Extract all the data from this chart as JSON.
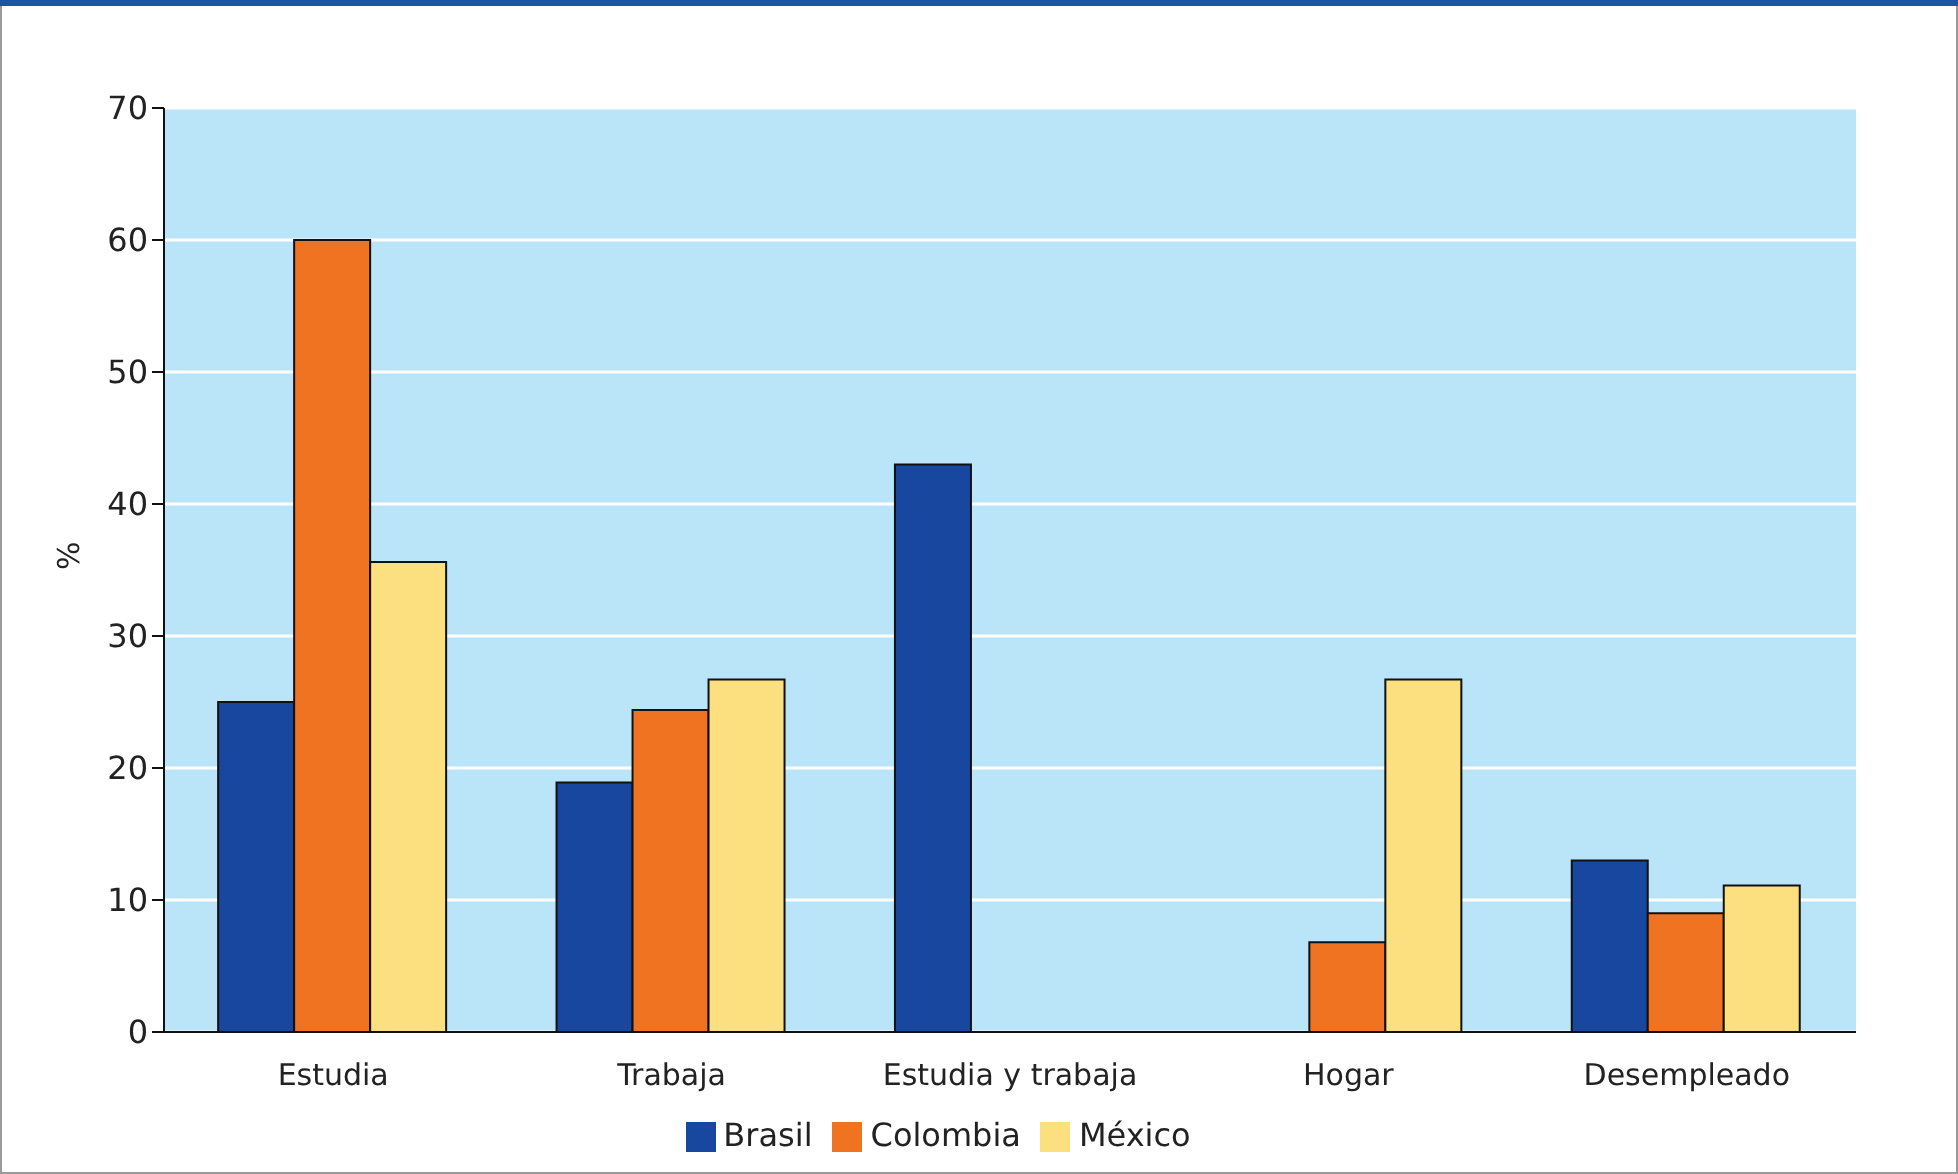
{
  "chart_data": {
    "type": "bar",
    "ylabel": "%",
    "categories": [
      "Estudia",
      "Trabaja",
      "Estudia y trabaja",
      "Hogar",
      "Desempleado"
    ],
    "series": [
      {
        "name": "Brasil",
        "color": "#17479e",
        "values": [
          25,
          18.9,
          43,
          null,
          13
        ]
      },
      {
        "name": "Colombia",
        "color": "#f07321",
        "values": [
          60,
          24.4,
          null,
          6.8,
          9
        ]
      },
      {
        "name": "México",
        "color": "#fcdf7e",
        "values": [
          35.6,
          26.7,
          null,
          26.7,
          11.1
        ]
      }
    ],
    "ylim": [
      0,
      70
    ],
    "yticks": [
      0,
      10,
      20,
      30,
      40,
      50,
      60,
      70
    ],
    "grid": "y",
    "legend": "bottom"
  }
}
